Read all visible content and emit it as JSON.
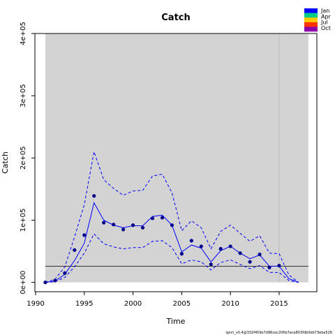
{
  "chart_data": {
    "type": "line",
    "title": "Catch",
    "xlabel": "Time",
    "ylabel": "Catch",
    "xlim": [
      1991,
      2018
    ],
    "ylim": [
      0,
      400000
    ],
    "x_ticks": [
      1990,
      1995,
      2000,
      2005,
      2010,
      2015
    ],
    "y_ticks": [
      0,
      100000,
      200000,
      300000,
      400000
    ],
    "y_tick_labels": [
      "0e+00",
      "1e+05",
      "2e+05",
      "3e+05",
      "4e+05"
    ],
    "grid": false,
    "shaded_region": [
      1991,
      2018
    ],
    "forecast_start": 2015,
    "reference_line": 26000,
    "observed": {
      "x": [
        1991,
        1992,
        1993,
        1994,
        1995,
        1996,
        1997,
        1998,
        1999,
        2000,
        2001,
        2002,
        2003,
        2004,
        2005,
        2006,
        2007,
        2008,
        2009,
        2010,
        2011,
        2012,
        2013,
        2014,
        2015
      ],
      "y": [
        0,
        3000,
        15000,
        52000,
        76000,
        139000,
        96000,
        93000,
        85000,
        92000,
        88000,
        103000,
        104000,
        92000,
        46000,
        67000,
        58000,
        29000,
        54000,
        58000,
        47000,
        33000,
        45000,
        24000,
        27000
      ]
    },
    "series": [
      {
        "x": [
          1991,
          1992,
          1993,
          1994,
          1995,
          1996,
          1997,
          1998,
          1999,
          2000,
          2001,
          2002,
          2003,
          2004,
          2005,
          2006,
          2007,
          2008,
          2009,
          2010,
          2011,
          2012,
          2013,
          2014,
          2015,
          2016,
          2017
        ],
        "values": [
          0,
          2000,
          13000,
          35000,
          63000,
          128000,
          100000,
          92000,
          88000,
          91000,
          91000,
          106000,
          108000,
          92000,
          49000,
          60000,
          55000,
          33000,
          51000,
          58000,
          47000,
          38000,
          44000,
          26000,
          26000,
          6000,
          0
        ],
        "style": "solid"
      },
      {
        "x": [
          1991,
          1992,
          1993,
          1994,
          1995,
          1996,
          1997,
          1998,
          1999,
          2000,
          2001,
          2002,
          2003,
          2004,
          2005,
          2006,
          2007,
          2008,
          2009,
          2010,
          2011,
          2012,
          2013,
          2014,
          2015,
          2016,
          2017
        ],
        "values": [
          0,
          5000,
          25000,
          73000,
          125000,
          210000,
          165000,
          151000,
          140000,
          147000,
          148000,
          171000,
          174000,
          144000,
          83000,
          99000,
          88000,
          54000,
          82000,
          92000,
          79000,
          66000,
          75000,
          47000,
          46000,
          12000,
          0
        ],
        "style": "dashed"
      },
      {
        "x": [
          1991,
          1992,
          1993,
          1994,
          1995,
          1996,
          1997,
          1998,
          1999,
          2000,
          2001,
          2002,
          2003,
          2004,
          2005,
          2006,
          2007,
          2008,
          2009,
          2010,
          2011,
          2012,
          2013,
          2014,
          2015,
          2016,
          2017
        ],
        "values": [
          0,
          1000,
          8000,
          25000,
          47000,
          78000,
          62000,
          57000,
          54000,
          56000,
          56000,
          66000,
          67000,
          56000,
          30000,
          36000,
          33000,
          20000,
          32000,
          36000,
          29000,
          22000,
          27000,
          16000,
          16000,
          3000,
          0
        ],
        "style": "dashed"
      }
    ],
    "legend": {
      "placement": "top-right",
      "entries": [
        "Jan",
        "Apr",
        "Jul",
        "Oct"
      ],
      "colors": [
        "#0000ff",
        "#00cc88",
        "#ffcc00",
        "#ff3300",
        "#8b00aa"
      ]
    },
    "footer": "spict_v0.4@332f459e7d96cec206b7aca803fdb0eb73eba526"
  },
  "colors": {
    "shade": "#d3d3d3",
    "series": "#0000ff",
    "points": "#00008b",
    "reference": "#333333",
    "forecast_line": "#bbbbbb"
  }
}
